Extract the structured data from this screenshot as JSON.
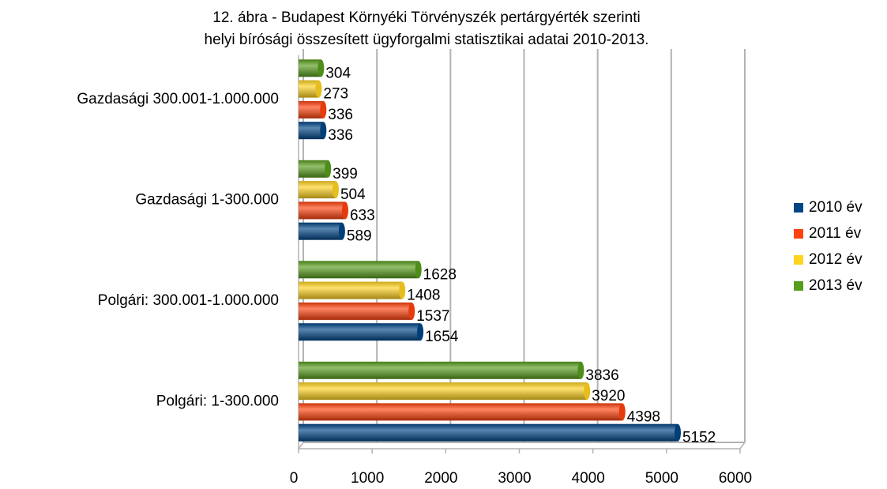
{
  "chart_data": {
    "type": "bar",
    "orientation": "horizontal",
    "title": [
      "12. ábra - Budapest Környéki Törvényszék pertárgyérték szerinti",
      "helyi bírósági összesített ügyforgalmi statisztikai adatai 2010-2013."
    ],
    "categories": [
      "Polgári: 1-300.000",
      "Polgári: 300.001-1.000.000",
      "Gazdasági 1-300.000",
      "Gazdasági 300.001-1.000.000"
    ],
    "series": [
      {
        "name": "2010 év",
        "color": "#004586",
        "values": [
          5152,
          1654,
          589,
          336
        ]
      },
      {
        "name": "2011 év",
        "color": "#ff420e",
        "values": [
          4398,
          1537,
          633,
          336
        ]
      },
      {
        "name": "2012 év",
        "color": "#ffd320",
        "values": [
          3920,
          1408,
          504,
          273
        ]
      },
      {
        "name": "2013 év",
        "color": "#579d1c",
        "values": [
          3836,
          1628,
          399,
          304
        ]
      }
    ],
    "xlim": [
      0,
      6000
    ],
    "xticks": [
      0,
      1000,
      2000,
      3000,
      4000,
      5000,
      6000
    ],
    "grid": true,
    "legend": "right"
  }
}
